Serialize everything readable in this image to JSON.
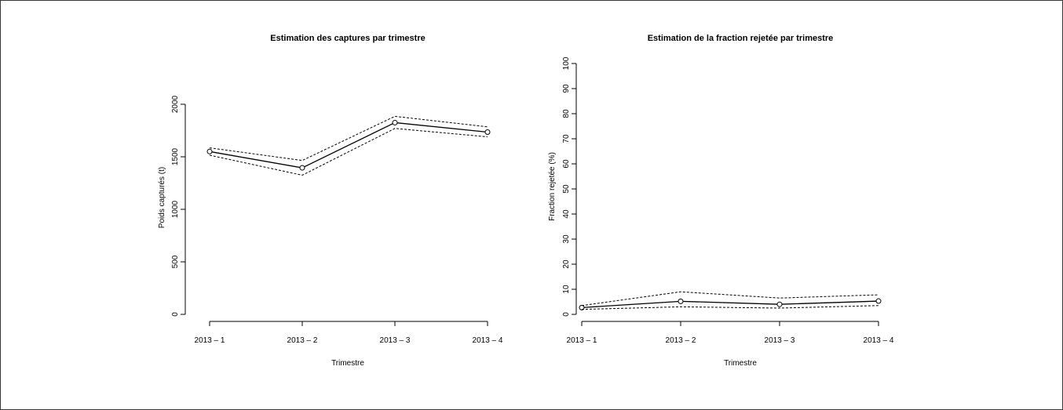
{
  "chart_data": [
    {
      "type": "line",
      "title": "Estimation des captures par trimestre",
      "xlabel": "",
      "ylabel": "Poids capturés (t)",
      "categories": [
        "2013 – 1",
        "2013 – 2",
        "2013 – 3",
        "2013 – 4"
      ],
      "yticks": [
        0,
        500,
        1000,
        1500,
        2000
      ],
      "ylim": [
        0,
        2000
      ],
      "series": [
        {
          "values": [
            1550,
            1395,
            1825,
            1735
          ],
          "style": "solid",
          "markers": true
        },
        {
          "values": [
            1585,
            1465,
            1885,
            1785
          ],
          "style": "dotted"
        },
        {
          "values": [
            1515,
            1325,
            1770,
            1690
          ],
          "style": "dotted"
        }
      ]
    },
    {
      "type": "line",
      "title": "Estimation de la fraction rejetée par trimestre",
      "xlabel": "Trimestre",
      "ylabel": "Fraction rejetée (%)",
      "categories": [
        "2013 – 1",
        "2013 – 2",
        "2013 – 3",
        "2013 – 4"
      ],
      "yticks": [
        0,
        10,
        20,
        30,
        40,
        50,
        60,
        70,
        80,
        90,
        100
      ],
      "ylim": [
        0,
        100
      ],
      "series": [
        {
          "values": [
            2.7,
            5.2,
            4.0,
            5.3
          ],
          "style": "solid",
          "markers": true
        },
        {
          "values": [
            3.5,
            9.0,
            6.5,
            7.8
          ],
          "style": "dotted"
        },
        {
          "values": [
            2.0,
            3.0,
            2.5,
            3.5
          ],
          "style": "dotted"
        }
      ]
    }
  ],
  "left_xlabel": "Trimestre"
}
